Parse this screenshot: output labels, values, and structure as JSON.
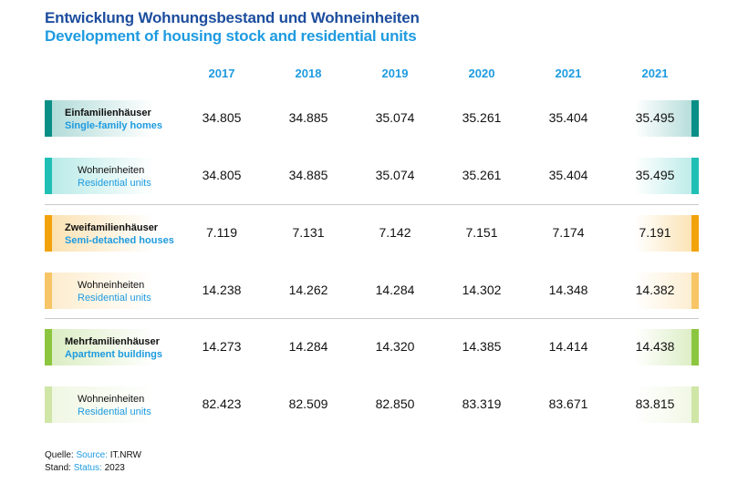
{
  "title_de": "Entwicklung Wohnungsbestand und Wohneinheiten",
  "title_en": "Development of housing stock and residential units",
  "chart_data": {
    "type": "table",
    "columns": [
      "2017",
      "2018",
      "2019",
      "2020",
      "2021",
      "2021"
    ],
    "rows": [
      {
        "label_de": "Einfamilienhäuser",
        "label_en": "Single-family homes",
        "group": "einfamilien",
        "main": true,
        "values": [
          "34.805",
          "34.885",
          "35.074",
          "35.261",
          "35.404",
          "35.495"
        ]
      },
      {
        "label_de": "Wohneinheiten",
        "label_en": "Residential units",
        "group": "einfamilien",
        "main": false,
        "values": [
          "34.805",
          "34.885",
          "35.074",
          "35.261",
          "35.404",
          "35.495"
        ]
      },
      {
        "label_de": "Zweifamilienhäuser",
        "label_en": "Semi-detached houses",
        "group": "zweifamilien",
        "main": true,
        "values": [
          "7.119",
          "7.131",
          "7.142",
          "7.151",
          "7.174",
          "7.191"
        ]
      },
      {
        "label_de": "Wohneinheiten",
        "label_en": "Residential units",
        "group": "zweifamilien",
        "main": false,
        "values": [
          "14.238",
          "14.262",
          "14.284",
          "14.302",
          "14.348",
          "14.382"
        ]
      },
      {
        "label_de": "Mehrfamilienhäuser",
        "label_en": "Apartment buildings",
        "group": "mehrfamilien",
        "main": true,
        "values": [
          "14.273",
          "14.284",
          "14.320",
          "14.385",
          "14.414",
          "14.438"
        ]
      },
      {
        "label_de": "Wohneinheiten",
        "label_en": "Residential units",
        "group": "mehrfamilien",
        "main": false,
        "values": [
          "82.423",
          "82.509",
          "82.850",
          "83.319",
          "83.671",
          "83.815"
        ]
      }
    ]
  },
  "colors": {
    "einfamilien_main": "#0a8f86",
    "einfamilien_sub": "#20bfb5",
    "zweifamilien_main": "#f2a20a",
    "zweifamilien_sub": "#f7c565",
    "mehrfamilien_main": "#8cc63f",
    "mehrfamilien_sub": "#cfe6a6"
  },
  "footer": {
    "source_de": "Quelle:",
    "source_en": "Source:",
    "source_value": "IT.NRW",
    "status_de": "Stand:",
    "status_en": "Status:",
    "status_value": "2023"
  }
}
